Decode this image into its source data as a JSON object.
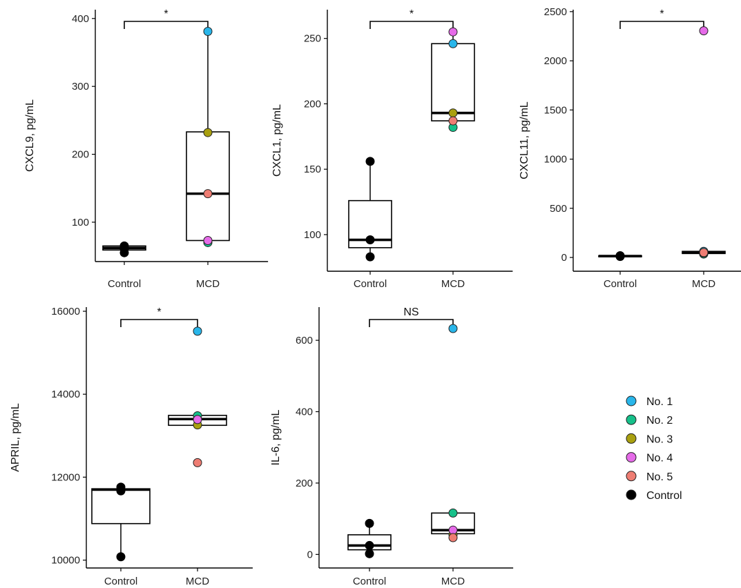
{
  "chart_data": [
    {
      "type": "box",
      "ylabel": "CXCL9, pg/mL",
      "categories": [
        "Control",
        "MCD"
      ],
      "yticks": [
        100,
        200,
        300,
        400
      ],
      "ylim": [
        42,
        413
      ],
      "significance": "*",
      "boxes": [
        {
          "q1": 59,
          "median": 62,
          "q3": 65,
          "whisker_low": 59,
          "whisker_high": 65
        },
        {
          "q1": 73,
          "median": 142,
          "q3": 233,
          "whisker_low": 69,
          "whisker_high": 381
        }
      ],
      "points": {
        "Control": [
          {
            "group": "Control",
            "value": 55
          },
          {
            "group": "Control",
            "value": 61
          },
          {
            "group": "Control",
            "value": 65
          }
        ],
        "MCD": [
          {
            "group": "No. 1",
            "value": 381
          },
          {
            "group": "No. 2",
            "value": 70
          },
          {
            "group": "No. 3",
            "value": 232
          },
          {
            "group": "No. 4",
            "value": 73
          },
          {
            "group": "No. 5",
            "value": 142
          }
        ]
      }
    },
    {
      "type": "box",
      "ylabel": "CXCL1, pg/mL",
      "categories": [
        "Control",
        "MCD"
      ],
      "yticks": [
        100,
        150,
        200,
        250
      ],
      "ylim": [
        72,
        272
      ],
      "significance": "*",
      "boxes": [
        {
          "q1": 90,
          "median": 96,
          "q3": 126,
          "whisker_low": 83,
          "whisker_high": 156
        },
        {
          "q1": 187,
          "median": 193,
          "q3": 246,
          "whisker_low": 182,
          "whisker_high": 255
        }
      ],
      "points": {
        "Control": [
          {
            "group": "Control",
            "value": 83
          },
          {
            "group": "Control",
            "value": 96
          },
          {
            "group": "Control",
            "value": 156
          }
        ],
        "MCD": [
          {
            "group": "No. 1",
            "value": 246
          },
          {
            "group": "No. 2",
            "value": 182
          },
          {
            "group": "No. 3",
            "value": 193
          },
          {
            "group": "No. 4",
            "value": 255
          },
          {
            "group": "No. 5",
            "value": 187
          }
        ]
      }
    },
    {
      "type": "box",
      "ylabel": "CXCL11, pg/mL",
      "categories": [
        "Control",
        "MCD"
      ],
      "yticks": [
        0,
        500,
        1000,
        1500,
        2000,
        2500
      ],
      "ylim": [
        -140,
        2520
      ],
      "significance": "*",
      "boxes": [
        {
          "q1": 10,
          "median": 14,
          "q3": 18,
          "whisker_low": 8,
          "whisker_high": 20
        },
        {
          "q1": 40,
          "median": 52,
          "q3": 62,
          "whisker_low": 30,
          "whisker_high": 68
        }
      ],
      "points": {
        "Control": [
          {
            "group": "Control",
            "value": 10
          },
          {
            "group": "Control",
            "value": 14
          },
          {
            "group": "Control",
            "value": 18
          }
        ],
        "MCD": [
          {
            "group": "No. 1",
            "value": 62
          },
          {
            "group": "No. 2",
            "value": 35
          },
          {
            "group": "No. 3",
            "value": 45
          },
          {
            "group": "No. 4",
            "value": 2305
          },
          {
            "group": "No. 5",
            "value": 50
          }
        ]
      }
    },
    {
      "type": "box",
      "ylabel": "APRIL, pg/mL",
      "categories": [
        "Control",
        "MCD"
      ],
      "yticks": [
        10000,
        12000,
        14000,
        16000
      ],
      "ylim": [
        9810,
        16100
      ],
      "significance": "*",
      "boxes": [
        {
          "q1": 10880,
          "median": 11700,
          "q3": 11720,
          "whisker_low": 10080,
          "whisker_high": 11750
        },
        {
          "q1": 13250,
          "median": 13400,
          "q3": 13490,
          "whisker_low": 13250,
          "whisker_high": 13490
        }
      ],
      "points": {
        "Control": [
          {
            "group": "Control",
            "value": 10080
          },
          {
            "group": "Control",
            "value": 11670
          },
          {
            "group": "Control",
            "value": 11760
          }
        ],
        "MCD": [
          {
            "group": "No. 1",
            "value": 15520
          },
          {
            "group": "No. 2",
            "value": 13480
          },
          {
            "group": "No. 3",
            "value": 13260
          },
          {
            "group": "No. 4",
            "value": 13390
          },
          {
            "group": "No. 5",
            "value": 12350
          }
        ]
      }
    },
    {
      "type": "box",
      "ylabel": "IL-6, pg/mL",
      "categories": [
        "Control",
        "MCD"
      ],
      "yticks": [
        0,
        200,
        400,
        600
      ],
      "ylim": [
        -38,
        693
      ],
      "significance": "NS",
      "boxes": [
        {
          "q1": 13,
          "median": 25,
          "q3": 55,
          "whisker_low": 2,
          "whisker_high": 87
        },
        {
          "q1": 58,
          "median": 68,
          "q3": 116,
          "whisker_low": 47,
          "whisker_high": 116
        }
      ],
      "points": {
        "Control": [
          {
            "group": "Control",
            "value": 2
          },
          {
            "group": "Control",
            "value": 25
          },
          {
            "group": "Control",
            "value": 87
          }
        ],
        "MCD": [
          {
            "group": "No. 1",
            "value": 633
          },
          {
            "group": "No. 2",
            "value": 116
          },
          {
            "group": "No. 3",
            "value": 55
          },
          {
            "group": "No. 4",
            "value": 68
          },
          {
            "group": "No. 5",
            "value": 47
          }
        ]
      }
    }
  ],
  "legend": {
    "placement": "bottom-right",
    "items": [
      {
        "label": "No. 1",
        "color": "#29B6EA"
      },
      {
        "label": "No. 2",
        "color": "#16C08A"
      },
      {
        "label": "No. 3",
        "color": "#A9A010"
      },
      {
        "label": "No. 4",
        "color": "#E56BE8"
      },
      {
        "label": "No. 5",
        "color": "#EE7D73"
      },
      {
        "label": "Control",
        "color": "#000000"
      }
    ]
  }
}
